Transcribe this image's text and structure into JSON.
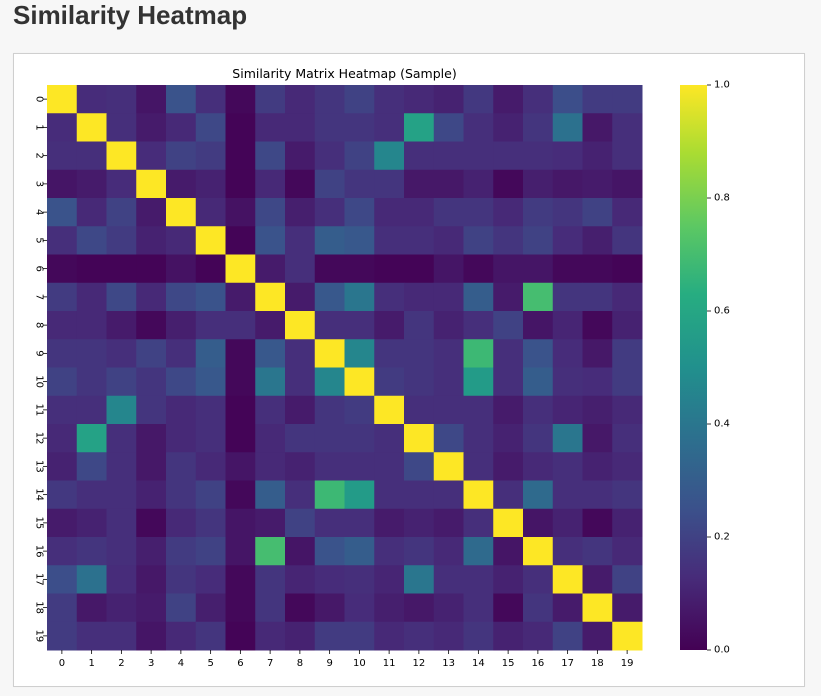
{
  "page": {
    "title": "Similarity Heatmap"
  },
  "chart_data": {
    "type": "heatmap",
    "title": "Similarity Matrix Heatmap (Sample)",
    "x_labels": [
      "0",
      "1",
      "2",
      "3",
      "4",
      "5",
      "6",
      "7",
      "8",
      "9",
      "10",
      "11",
      "12",
      "13",
      "14",
      "15",
      "16",
      "17",
      "18",
      "19"
    ],
    "y_labels": [
      "0",
      "1",
      "2",
      "3",
      "4",
      "5",
      "6",
      "7",
      "8",
      "9",
      "10",
      "11",
      "12",
      "13",
      "14",
      "15",
      "16",
      "17",
      "18",
      "19"
    ],
    "colormap": "viridis",
    "vmin": 0.0,
    "vmax": 1.0,
    "colorbar_ticks": [
      "0.0",
      "0.2",
      "0.4",
      "0.6",
      "0.8",
      "1.0"
    ],
    "values": [
      [
        1.0,
        0.13,
        0.14,
        0.06,
        0.26,
        0.14,
        0.02,
        0.18,
        0.12,
        0.16,
        0.2,
        0.14,
        0.12,
        0.1,
        0.17,
        0.08,
        0.14,
        0.24,
        0.18,
        0.18
      ],
      [
        0.13,
        1.0,
        0.14,
        0.08,
        0.12,
        0.22,
        0.01,
        0.12,
        0.12,
        0.16,
        0.16,
        0.14,
        0.58,
        0.22,
        0.14,
        0.1,
        0.16,
        0.38,
        0.07,
        0.14
      ],
      [
        0.14,
        0.14,
        1.0,
        0.13,
        0.2,
        0.18,
        0.01,
        0.22,
        0.08,
        0.14,
        0.2,
        0.46,
        0.14,
        0.14,
        0.14,
        0.14,
        0.14,
        0.13,
        0.1,
        0.14
      ],
      [
        0.06,
        0.08,
        0.13,
        1.0,
        0.08,
        0.1,
        0.01,
        0.12,
        0.02,
        0.2,
        0.16,
        0.16,
        0.07,
        0.07,
        0.1,
        0.02,
        0.09,
        0.07,
        0.08,
        0.06
      ],
      [
        0.26,
        0.12,
        0.2,
        0.08,
        1.0,
        0.12,
        0.05,
        0.22,
        0.09,
        0.14,
        0.22,
        0.12,
        0.12,
        0.16,
        0.16,
        0.12,
        0.18,
        0.16,
        0.2,
        0.12
      ],
      [
        0.14,
        0.22,
        0.18,
        0.1,
        0.12,
        1.0,
        0.01,
        0.26,
        0.14,
        0.3,
        0.28,
        0.14,
        0.14,
        0.12,
        0.2,
        0.16,
        0.2,
        0.13,
        0.09,
        0.16
      ],
      [
        0.02,
        0.01,
        0.01,
        0.01,
        0.05,
        0.01,
        1.0,
        0.08,
        0.14,
        0.02,
        0.02,
        0.01,
        0.01,
        0.06,
        0.02,
        0.06,
        0.06,
        0.02,
        0.02,
        0.01
      ],
      [
        0.18,
        0.12,
        0.22,
        0.12,
        0.22,
        0.26,
        0.08,
        1.0,
        0.08,
        0.28,
        0.4,
        0.14,
        0.12,
        0.12,
        0.3,
        0.08,
        0.7,
        0.16,
        0.16,
        0.12
      ],
      [
        0.12,
        0.12,
        0.08,
        0.02,
        0.09,
        0.14,
        0.14,
        0.08,
        1.0,
        0.14,
        0.14,
        0.08,
        0.16,
        0.1,
        0.14,
        0.2,
        0.06,
        0.11,
        0.02,
        0.1
      ],
      [
        0.16,
        0.16,
        0.14,
        0.2,
        0.14,
        0.3,
        0.02,
        0.28,
        0.14,
        1.0,
        0.46,
        0.16,
        0.16,
        0.14,
        0.68,
        0.14,
        0.26,
        0.13,
        0.07,
        0.18
      ],
      [
        0.2,
        0.16,
        0.2,
        0.16,
        0.22,
        0.28,
        0.02,
        0.4,
        0.14,
        0.46,
        1.0,
        0.18,
        0.16,
        0.14,
        0.55,
        0.14,
        0.3,
        0.14,
        0.13,
        0.18
      ],
      [
        0.14,
        0.14,
        0.46,
        0.16,
        0.12,
        0.14,
        0.01,
        0.14,
        0.08,
        0.16,
        0.18,
        1.0,
        0.14,
        0.14,
        0.14,
        0.08,
        0.14,
        0.11,
        0.09,
        0.12
      ],
      [
        0.12,
        0.58,
        0.14,
        0.07,
        0.12,
        0.14,
        0.01,
        0.12,
        0.16,
        0.16,
        0.16,
        0.14,
        1.0,
        0.22,
        0.14,
        0.1,
        0.16,
        0.4,
        0.07,
        0.14
      ],
      [
        0.1,
        0.22,
        0.14,
        0.07,
        0.16,
        0.12,
        0.06,
        0.12,
        0.1,
        0.14,
        0.14,
        0.14,
        0.22,
        1.0,
        0.14,
        0.08,
        0.12,
        0.14,
        0.1,
        0.12
      ],
      [
        0.17,
        0.14,
        0.14,
        0.1,
        0.16,
        0.2,
        0.02,
        0.3,
        0.14,
        0.68,
        0.55,
        0.14,
        0.14,
        0.14,
        1.0,
        0.14,
        0.35,
        0.14,
        0.14,
        0.16
      ],
      [
        0.08,
        0.1,
        0.14,
        0.02,
        0.12,
        0.16,
        0.06,
        0.08,
        0.2,
        0.14,
        0.14,
        0.08,
        0.1,
        0.08,
        0.14,
        1.0,
        0.06,
        0.1,
        0.02,
        0.1
      ],
      [
        0.14,
        0.16,
        0.14,
        0.09,
        0.18,
        0.2,
        0.06,
        0.7,
        0.06,
        0.26,
        0.3,
        0.14,
        0.16,
        0.12,
        0.35,
        0.06,
        1.0,
        0.14,
        0.16,
        0.12
      ],
      [
        0.24,
        0.38,
        0.13,
        0.07,
        0.16,
        0.13,
        0.02,
        0.16,
        0.11,
        0.13,
        0.14,
        0.11,
        0.4,
        0.14,
        0.14,
        0.1,
        0.14,
        1.0,
        0.08,
        0.2
      ],
      [
        0.18,
        0.07,
        0.1,
        0.08,
        0.2,
        0.09,
        0.02,
        0.16,
        0.02,
        0.07,
        0.13,
        0.09,
        0.07,
        0.1,
        0.14,
        0.02,
        0.16,
        0.08,
        1.0,
        0.08
      ],
      [
        0.18,
        0.14,
        0.14,
        0.06,
        0.12,
        0.16,
        0.01,
        0.12,
        0.1,
        0.18,
        0.18,
        0.12,
        0.14,
        0.12,
        0.16,
        0.1,
        0.12,
        0.2,
        0.08,
        1.0
      ]
    ]
  }
}
